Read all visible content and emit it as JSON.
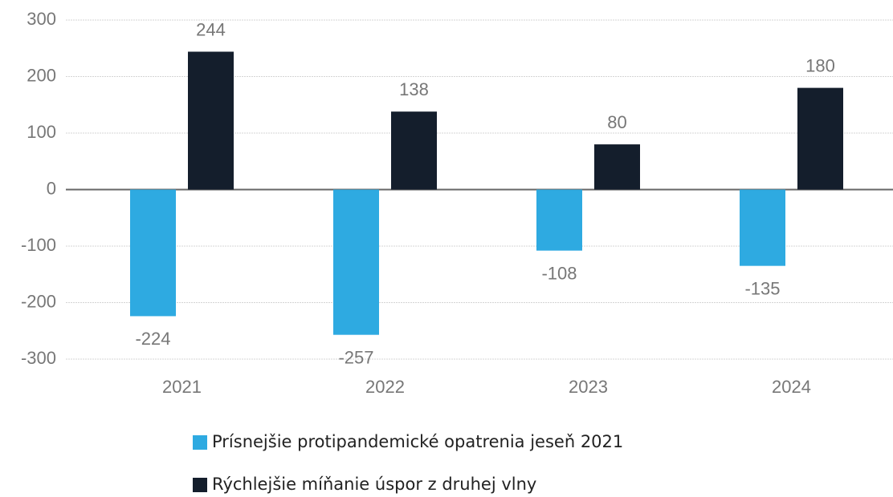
{
  "chart_data": {
    "type": "bar",
    "categories": [
      "2021",
      "2022",
      "2023",
      "2024"
    ],
    "series": [
      {
        "name": "Prísnejšie protipandemické opatrenia jeseň 2021",
        "color": "#2eaae1",
        "values": [
          -224,
          -257,
          -108,
          -135
        ]
      },
      {
        "name": "Rýchlejšie míňanie úspor z druhej vlny",
        "color": "#141e2c",
        "values": [
          244,
          138,
          80,
          180
        ]
      }
    ],
    "ylim": [
      -300,
      300
    ],
    "yticks": [
      -300,
      -200,
      -100,
      0,
      100,
      200,
      300
    ],
    "grid": true,
    "legend": "bottom"
  }
}
